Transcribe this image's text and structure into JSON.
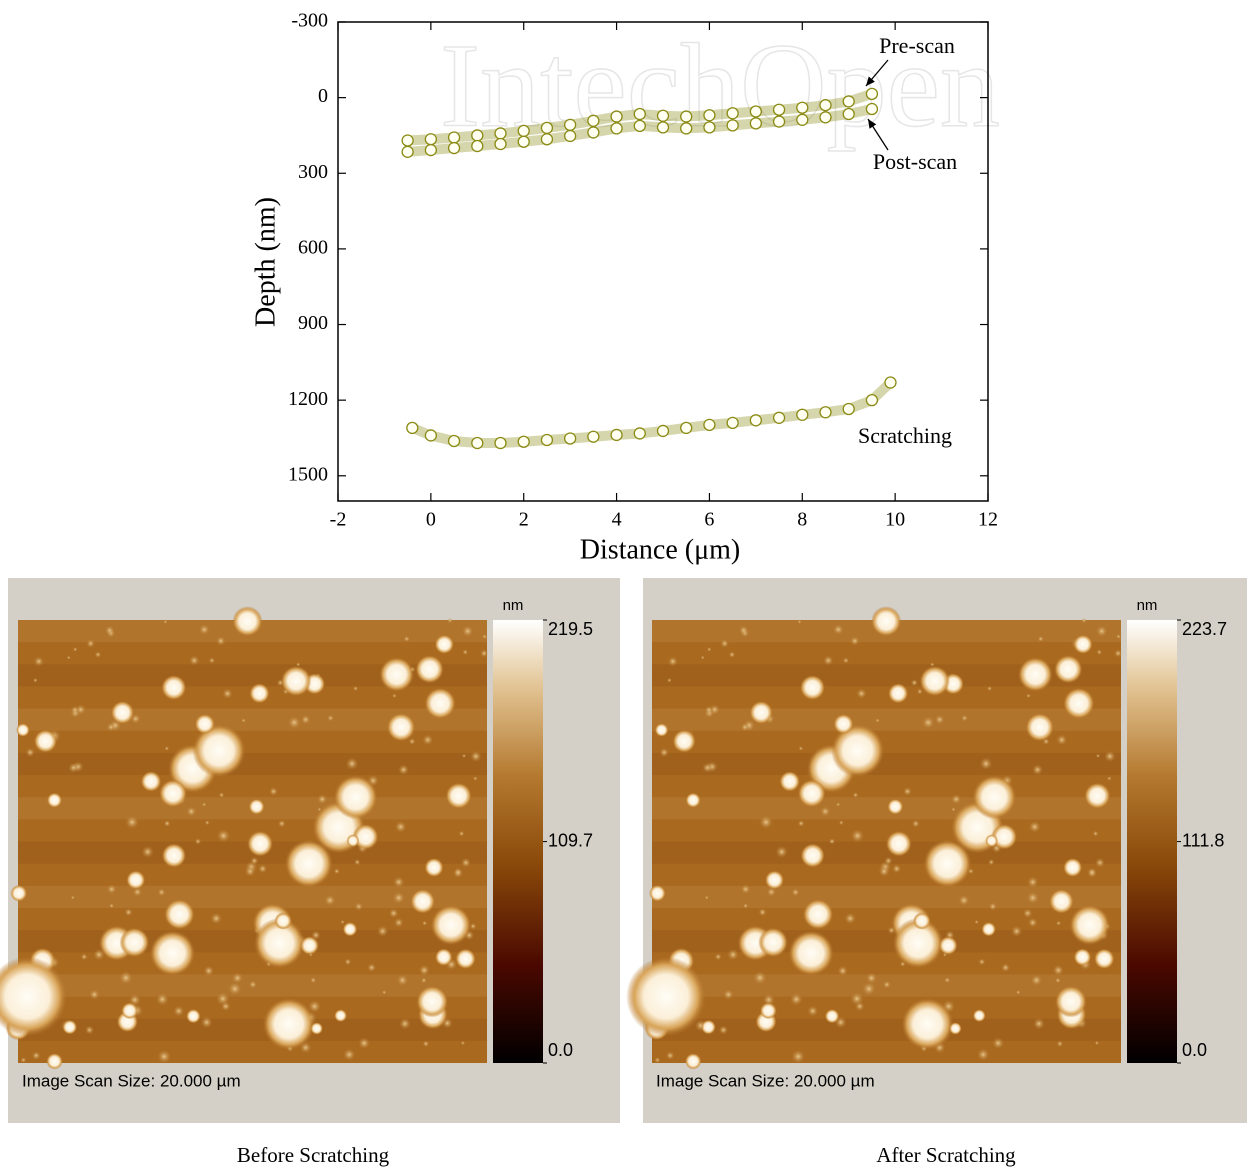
{
  "watermark": "IntechOpen",
  "chart_data": {
    "type": "scatter",
    "x_label": "Distance (μm)",
    "y_label": "Depth (nm)",
    "xlim": [
      -2,
      12
    ],
    "xticks": [
      -2,
      0,
      2,
      4,
      6,
      8,
      10,
      12
    ],
    "ylim": [
      -300,
      1600
    ],
    "y_inverted": true,
    "yticks": [
      -300,
      0,
      300,
      600,
      900,
      1200,
      1500
    ],
    "series": [
      {
        "name": "Pre-scan",
        "color": "#8a8a14",
        "x": [
          -0.5,
          0,
          0.5,
          1,
          1.5,
          2,
          2.5,
          3,
          3.5,
          4,
          4.5,
          5,
          5.5,
          6,
          6.5,
          7,
          7.5,
          8,
          8.5,
          9,
          9.5
        ],
        "values": [
          170,
          165,
          158,
          150,
          142,
          132,
          120,
          108,
          92,
          75,
          65,
          72,
          75,
          70,
          62,
          55,
          48,
          40,
          30,
          15,
          -15
        ]
      },
      {
        "name": "Post-scan",
        "color": "#8a8a14",
        "x": [
          -0.5,
          0,
          0.5,
          1,
          1.5,
          2,
          2.5,
          3,
          3.5,
          4,
          4.5,
          5,
          5.5,
          6,
          6.5,
          7,
          7.5,
          8,
          8.5,
          9,
          9.5
        ],
        "values": [
          215,
          208,
          200,
          192,
          184,
          175,
          165,
          152,
          138,
          122,
          112,
          118,
          122,
          118,
          110,
          102,
          95,
          88,
          78,
          65,
          45
        ]
      },
      {
        "name": "Scratching",
        "color": "#8a8a14",
        "x": [
          -0.4,
          0,
          0.5,
          1,
          1.5,
          2,
          2.5,
          3,
          3.5,
          4,
          4.5,
          5,
          5.5,
          6,
          6.5,
          7,
          7.5,
          8,
          8.5,
          9,
          9.5,
          9.9
        ],
        "values": [
          1310,
          1340,
          1362,
          1370,
          1370,
          1365,
          1358,
          1352,
          1345,
          1338,
          1332,
          1322,
          1310,
          1298,
          1290,
          1280,
          1270,
          1258,
          1248,
          1235,
          1200,
          1130
        ]
      }
    ]
  },
  "panels": [
    {
      "unit": "nm",
      "zlim": [
        0,
        219.5
      ],
      "ticks": [
        {
          "value": 0,
          "label": "0.0"
        },
        109.7,
        219.5
      ],
      "scan_size": "Image Scan Size:  20.000 µm",
      "caption": "Before Scratching"
    },
    {
      "unit": "nm",
      "zlim": [
        0,
        223.7
      ],
      "ticks": [
        {
          "value": 0,
          "label": "0.0"
        },
        111.8,
        223.7
      ],
      "scan_size": "Image Scan Size:  20.000 µm",
      "caption": "After Scratching"
    }
  ]
}
